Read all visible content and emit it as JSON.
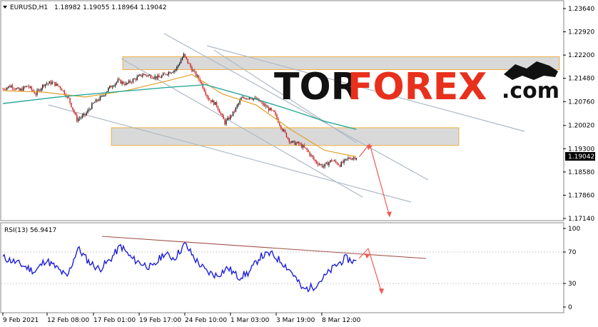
{
  "header": {
    "symbol": "EURUSD,H1",
    "quotes": "1.18982 1.19055 1.18964 1.19042"
  },
  "rsi_label": "RSI(13) 56.9417",
  "logo": {
    "part1": "TOR",
    "part2": "FOREX",
    "suffix": ".com"
  },
  "current_price_label": "1.19042",
  "colors": {
    "candle_up": "#1a1a1a",
    "candle_down": "#cc1f1f",
    "ma_fast": "#e0a02a",
    "ma_slow": "#2aa89a",
    "rsi_line": "#1f1fd8",
    "channel_line": "#aeb9c6",
    "zone_fill": "#d9d9d9",
    "zone_border": "#f0b040",
    "arrow": "#f05a50",
    "rsi_trend": "#a0524a"
  },
  "chart_data": {
    "type": "candlestick",
    "price_axis": {
      "ticks": [
        1.2364,
        1.2292,
        1.222,
        1.2148,
        1.2076,
        1.2002,
        1.193,
        1.1858,
        1.1786,
        1.1714
      ],
      "tick_labels": [
        "1.23640",
        "1.22920",
        "1.22200",
        "1.21480",
        "1.20760",
        "1.20020",
        "1.19300",
        "1.18580",
        "1.17860",
        "1.17140"
      ],
      "current": 1.19042
    },
    "rsi_axis": {
      "ticks": [
        100,
        70,
        30,
        0
      ],
      "tick_labels": [
        "100",
        "70",
        "30",
        "0"
      ],
      "range": [
        0,
        100
      ]
    },
    "x_labels": [
      "9 Feb 2021",
      "12 Feb 08:00",
      "17 Feb 01:00",
      "19 Feb 17:00",
      "24 Feb 10:00",
      "1 Mar 03:00",
      "3 Mar 19:00",
      "8 Mar 12:00"
    ],
    "close_path": [
      [
        0,
        1.2115
      ],
      [
        6,
        1.2125
      ],
      [
        12,
        1.211
      ],
      [
        18,
        1.2125
      ],
      [
        24,
        1.21
      ],
      [
        30,
        1.213
      ],
      [
        36,
        1.2135
      ],
      [
        42,
        1.212
      ],
      [
        48,
        1.2085
      ],
      [
        54,
        1.202
      ],
      [
        60,
        1.2035
      ],
      [
        66,
        1.207
      ],
      [
        72,
        1.209
      ],
      [
        78,
        1.212
      ],
      [
        84,
        1.214
      ],
      [
        90,
        1.213
      ],
      [
        96,
        1.2145
      ],
      [
        102,
        1.216
      ],
      [
        108,
        1.2155
      ],
      [
        114,
        1.215
      ],
      [
        120,
        1.2165
      ],
      [
        126,
        1.2175
      ],
      [
        132,
        1.222
      ],
      [
        138,
        1.2175
      ],
      [
        144,
        1.214
      ],
      [
        150,
        1.2085
      ],
      [
        156,
        1.2065
      ],
      [
        162,
        1.201
      ],
      [
        168,
        1.204
      ],
      [
        174,
        1.2085
      ],
      [
        180,
        1.209
      ],
      [
        186,
        1.208
      ],
      [
        192,
        1.206
      ],
      [
        198,
        1.204
      ],
      [
        204,
        1.199
      ],
      [
        210,
        1.195
      ],
      [
        216,
        1.1945
      ],
      [
        222,
        1.1925
      ],
      [
        228,
        1.189
      ],
      [
        234,
        1.1875
      ],
      [
        240,
        1.1895
      ],
      [
        246,
        1.188
      ],
      [
        252,
        1.19
      ],
      [
        258,
        1.1904
      ]
    ],
    "ma_fast_path": [
      [
        0,
        1.211
      ],
      [
        30,
        1.2105
      ],
      [
        60,
        1.209
      ],
      [
        90,
        1.211
      ],
      [
        120,
        1.214
      ],
      [
        138,
        1.216
      ],
      [
        160,
        1.21
      ],
      [
        185,
        1.2065
      ],
      [
        210,
        1.199
      ],
      [
        235,
        1.1925
      ],
      [
        258,
        1.1905
      ]
    ],
    "ma_slow_path": [
      [
        0,
        1.207
      ],
      [
        40,
        1.209
      ],
      [
        80,
        1.2105
      ],
      [
        120,
        1.212
      ],
      [
        148,
        1.2128
      ],
      [
        180,
        1.209
      ],
      [
        210,
        1.205
      ],
      [
        235,
        1.2015
      ],
      [
        258,
        1.199
      ]
    ],
    "rsi_path": [
      [
        0,
        63
      ],
      [
        8,
        58
      ],
      [
        16,
        52
      ],
      [
        24,
        45
      ],
      [
        32,
        60
      ],
      [
        40,
        50
      ],
      [
        48,
        38
      ],
      [
        56,
        75
      ],
      [
        64,
        58
      ],
      [
        72,
        48
      ],
      [
        80,
        60
      ],
      [
        88,
        78
      ],
      [
        96,
        62
      ],
      [
        104,
        55
      ],
      [
        112,
        50
      ],
      [
        120,
        68
      ],
      [
        128,
        62
      ],
      [
        136,
        80
      ],
      [
        144,
        60
      ],
      [
        152,
        45
      ],
      [
        160,
        40
      ],
      [
        168,
        50
      ],
      [
        176,
        38
      ],
      [
        184,
        44
      ],
      [
        192,
        64
      ],
      [
        200,
        68
      ],
      [
        208,
        58
      ],
      [
        216,
        44
      ],
      [
        224,
        22
      ],
      [
        232,
        26
      ],
      [
        240,
        38
      ],
      [
        248,
        52
      ],
      [
        256,
        62
      ],
      [
        264,
        57
      ]
    ],
    "resistance_zone": [
      1.2175,
      1.2215
    ],
    "support_zone": [
      1.194,
      1.1995
    ],
    "forecast": {
      "from": 1.1945,
      "to": 1.172
    },
    "rsi_forecast": {
      "from": 62,
      "to": 18
    }
  }
}
